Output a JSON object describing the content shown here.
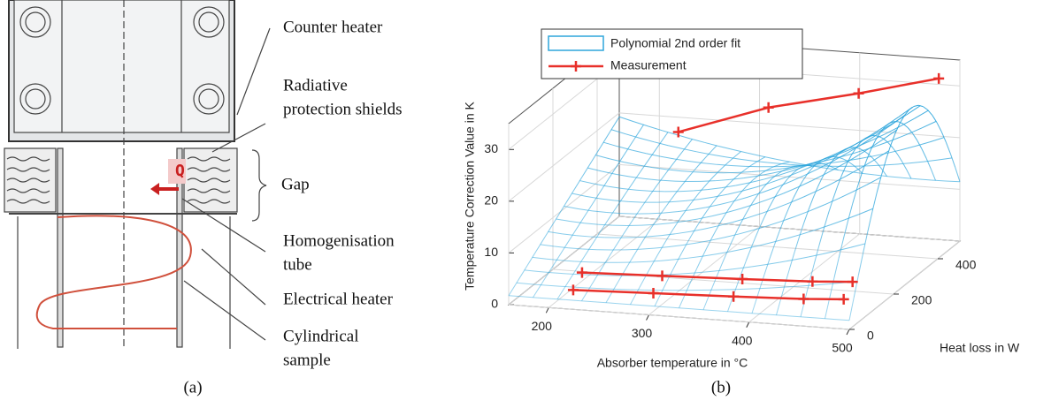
{
  "diagram": {
    "labels": [
      "Counter heater",
      "Radiative",
      "protection shields",
      "Gap",
      "Homogenisation",
      "tube",
      "Electrical heater",
      "Cylindrical",
      "sample"
    ],
    "symbol": "Q",
    "caption": "(a)"
  },
  "chart_data": {
    "type": "surface3d",
    "caption": "(b)",
    "xlabel": "Absorber temperature in °C",
    "ylabel": "Heat loss in W",
    "zlabel": "Temperature Correction Value in K",
    "xlim": [
      160,
      500
    ],
    "xticks": [
      200,
      300,
      400,
      500
    ],
    "ylim": [
      0,
      500
    ],
    "yticks": [
      0,
      200,
      400
    ],
    "zlim": [
      0,
      35
    ],
    "zticks": [
      0,
      10,
      20,
      30
    ],
    "grid": true,
    "legend": "upper left",
    "series": [
      {
        "name": "Polynomial 2nd order fit",
        "color": "#2fa6dc"
      },
      {
        "name": "Measurement",
        "color": "#e8302a",
        "x": [
          230,
          320,
          410,
          490,
          null,
          220,
          300,
          380,
          450,
          490,
          null,
          220,
          300,
          380,
          450,
          490
        ],
        "y": [
          450,
          450,
          450,
          450,
          null,
          20,
          20,
          20,
          20,
          20,
          null,
          60,
          60,
          60,
          60,
          60
        ],
        "z": [
          19,
          25,
          29,
          33,
          null,
          3,
          3.5,
          4,
          4.5,
          5,
          null,
          5,
          5.5,
          6,
          6.5,
          7
        ]
      }
    ]
  }
}
